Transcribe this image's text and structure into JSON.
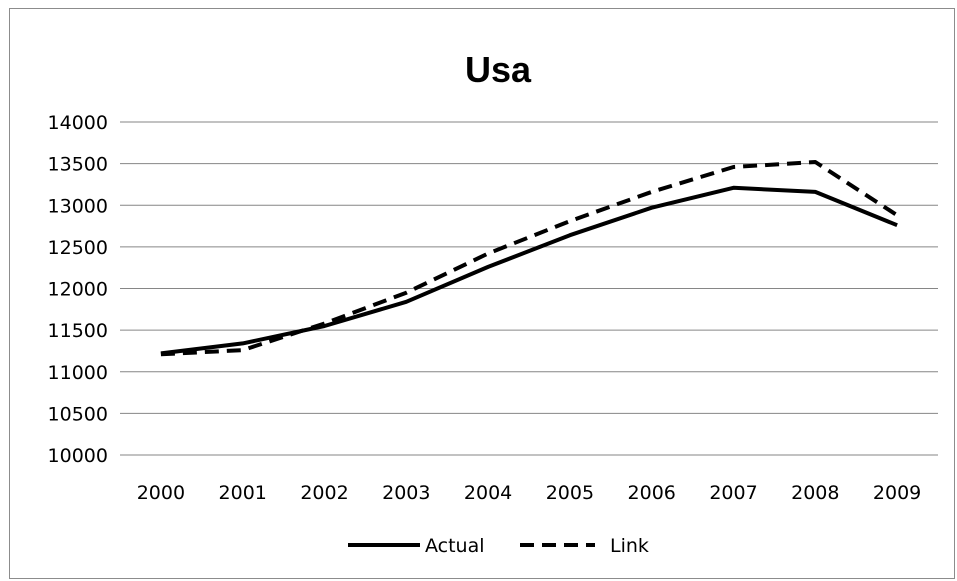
{
  "chart_data": {
    "type": "line",
    "title": "Usa",
    "xlabel": "",
    "ylabel": "",
    "categories": [
      "2000",
      "2001",
      "2002",
      "2003",
      "2004",
      "2005",
      "2006",
      "2007",
      "2008",
      "2009"
    ],
    "ylim": [
      10000,
      14000
    ],
    "yticks": [
      "10000",
      "10500",
      "11000",
      "11500",
      "12000",
      "12500",
      "13000",
      "13500",
      "14000"
    ],
    "grid": true,
    "legend_position": "bottom",
    "series": [
      {
        "name": "Actual",
        "style": "solid",
        "color": "#000000",
        "values": [
          11220,
          11340,
          11550,
          11840,
          12260,
          12640,
          12970,
          13210,
          13160,
          12760
        ]
      },
      {
        "name": "Link",
        "style": "dashed",
        "color": "#000000",
        "values": [
          11210,
          11260,
          11580,
          11950,
          12420,
          12810,
          13160,
          13460,
          13520,
          12880
        ]
      }
    ]
  }
}
